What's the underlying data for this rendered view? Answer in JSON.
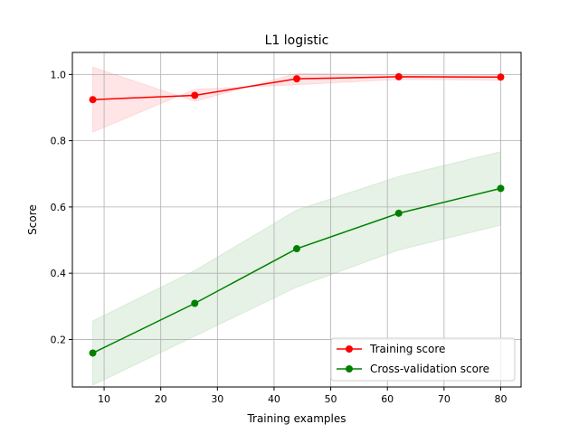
{
  "chart_data": {
    "type": "line",
    "title": "L1 logistic",
    "xlabel": "Training examples",
    "ylabel": "Score",
    "xlim": [
      4.4,
      83.6
    ],
    "ylim": [
      0.0565,
      1.0665
    ],
    "xticks": [
      10,
      20,
      30,
      40,
      50,
      60,
      70,
      80
    ],
    "xtick_labels": [
      "10",
      "20",
      "30",
      "40",
      "50",
      "60",
      "70",
      "80"
    ],
    "yticks": [
      0.2,
      0.4,
      0.6,
      0.8,
      1.0
    ],
    "ytick_labels": [
      "0.2",
      "0.4",
      "0.6",
      "0.8",
      "1.0"
    ],
    "grid": true,
    "legend_position": "lower-right",
    "x": [
      8,
      26,
      44,
      62,
      80
    ],
    "series": [
      {
        "name": "Training score",
        "color": "#ff0000",
        "values": [
          0.924,
          0.937,
          0.987,
          0.993,
          0.992
        ],
        "band_lower": [
          0.826,
          0.955,
          0.969,
          0.985,
          0.983
        ],
        "band_upper": [
          1.022,
          0.919,
          1.003,
          1.0,
          1.0
        ]
      },
      {
        "name": "Cross-validation score",
        "color": "#008000",
        "values": [
          0.159,
          0.309,
          0.474,
          0.581,
          0.656
        ],
        "band_lower": [
          0.062,
          0.21,
          0.358,
          0.47,
          0.545
        ],
        "band_upper": [
          0.256,
          0.408,
          0.591,
          0.692,
          0.767
        ]
      }
    ]
  }
}
